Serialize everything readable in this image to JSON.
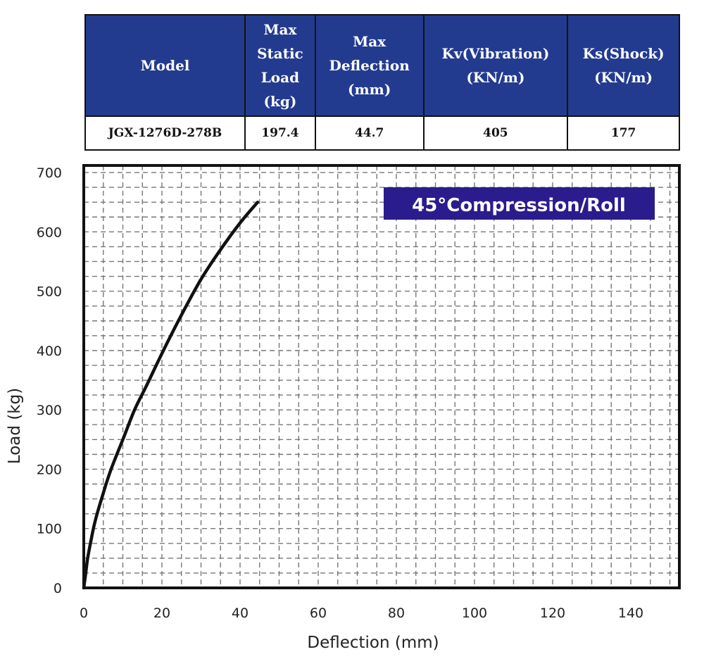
{
  "table": {
    "header_bg": "#233b8f",
    "headers": [
      {
        "lines": [
          "Model"
        ]
      },
      {
        "lines": [
          "Max",
          "Static",
          "Load",
          "(kg)"
        ]
      },
      {
        "lines": [
          "Max",
          "Deflection",
          "(mm)"
        ]
      },
      {
        "lines": [
          "Kv(Vibration)",
          "(KN/m)"
        ]
      },
      {
        "lines": [
          "Ks(Shock)",
          "(KN/m)"
        ]
      }
    ],
    "row": [
      "JGX-1276D-278B",
      "197.4",
      "44.7",
      "405",
      "177"
    ]
  },
  "chart_data": {
    "type": "line",
    "title": "",
    "badge": "45°Compression/Roll",
    "badge_color": "#2a1c8c",
    "curve_color": "#111111",
    "xlabel": "Deflection (mm)",
    "ylabel": "Load (kg)",
    "xlim": [
      0,
      150
    ],
    "ylim": [
      0,
      700
    ],
    "xticks": [
      0,
      20,
      40,
      60,
      80,
      100,
      120,
      140
    ],
    "yticks": [
      0,
      100,
      200,
      300,
      400,
      500,
      600,
      700
    ],
    "grid": true,
    "series": [
      {
        "x": [
          0,
          0.5,
          1,
          2,
          3,
          5,
          7,
          10,
          13,
          16,
          20,
          25,
          30,
          35,
          40,
          44.5
        ],
        "y": [
          0,
          25,
          50,
          85,
          115,
          160,
          200,
          250,
          300,
          340,
          395,
          460,
          520,
          570,
          615,
          650
        ]
      }
    ]
  }
}
